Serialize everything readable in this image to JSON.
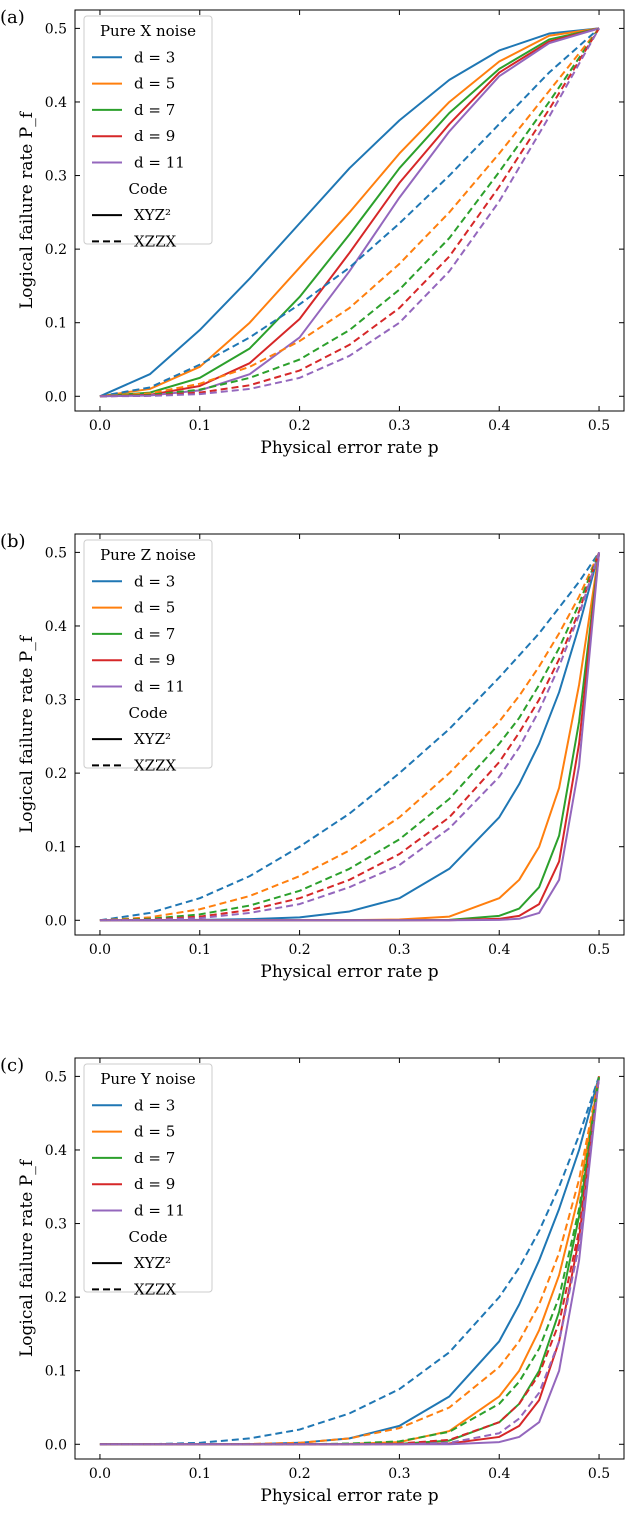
{
  "chart_data": [
    {
      "type": "line",
      "panel_label": "(a)",
      "legend_title": "Pure X noise",
      "legend_code_title": "Code",
      "xlabel": "Physical error rate p",
      "ylabel": "Logical failure rate P_f",
      "xlim": [
        -0.025,
        0.525
      ],
      "ylim": [
        -0.02,
        0.525
      ],
      "xticks": [
        0.0,
        0.1,
        0.2,
        0.3,
        0.4,
        0.5
      ],
      "xtick_labels": [
        "0.0",
        "0.1",
        "0.2",
        "0.3",
        "0.4",
        "0.5"
      ],
      "yticks": [
        0.0,
        0.1,
        0.2,
        0.3,
        0.4,
        0.5
      ],
      "ytick_labels": [
        "0.0",
        "0.1",
        "0.2",
        "0.3",
        "0.4",
        "0.5"
      ],
      "legend_position": "upper left",
      "x": [
        0,
        0.05,
        0.1,
        0.15,
        0.2,
        0.25,
        0.3,
        0.35,
        0.4,
        0.45,
        0.5
      ],
      "distances": [
        {
          "label": "d = 3",
          "color": "#1f77b4"
        },
        {
          "label": "d = 5",
          "color": "#ff7f0e"
        },
        {
          "label": "d = 7",
          "color": "#2ca02c"
        },
        {
          "label": "d = 9",
          "color": "#d62728"
        },
        {
          "label": "d = 11",
          "color": "#9467bd"
        }
      ],
      "codes": [
        {
          "label": "XYZ²",
          "style": "solid"
        },
        {
          "label": "XZZX",
          "style": "dashed"
        }
      ],
      "series": [
        {
          "distance": "d = 3",
          "code": "XYZ²",
          "values": [
            0,
            0.03,
            0.09,
            0.16,
            0.235,
            0.31,
            0.375,
            0.43,
            0.47,
            0.493,
            0.5
          ]
        },
        {
          "distance": "d = 5",
          "code": "XYZ²",
          "values": [
            0,
            0.01,
            0.04,
            0.1,
            0.175,
            0.25,
            0.33,
            0.4,
            0.455,
            0.49,
            0.5
          ]
        },
        {
          "distance": "d = 7",
          "code": "XYZ²",
          "values": [
            0,
            0.005,
            0.025,
            0.065,
            0.135,
            0.22,
            0.31,
            0.385,
            0.445,
            0.485,
            0.5
          ]
        },
        {
          "distance": "d = 9",
          "code": "XYZ²",
          "values": [
            0,
            0.002,
            0.014,
            0.045,
            0.105,
            0.195,
            0.29,
            0.37,
            0.44,
            0.482,
            0.5
          ]
        },
        {
          "distance": "d = 11",
          "code": "XYZ²",
          "values": [
            0,
            0.001,
            0.008,
            0.03,
            0.08,
            0.17,
            0.27,
            0.36,
            0.435,
            0.48,
            0.5
          ]
        },
        {
          "distance": "d = 3",
          "code": "XZZX",
          "values": [
            0,
            0.012,
            0.043,
            0.08,
            0.125,
            0.175,
            0.235,
            0.3,
            0.37,
            0.44,
            0.5
          ]
        },
        {
          "distance": "d = 5",
          "code": "XZZX",
          "values": [
            0,
            0.004,
            0.017,
            0.04,
            0.075,
            0.12,
            0.18,
            0.25,
            0.33,
            0.415,
            0.5
          ]
        },
        {
          "distance": "d = 7",
          "code": "XZZX",
          "values": [
            0,
            0.002,
            0.009,
            0.025,
            0.05,
            0.09,
            0.145,
            0.215,
            0.305,
            0.4,
            0.5
          ]
        },
        {
          "distance": "d = 9",
          "code": "XZZX",
          "values": [
            0,
            0.001,
            0.005,
            0.015,
            0.035,
            0.07,
            0.12,
            0.19,
            0.285,
            0.39,
            0.5
          ]
        },
        {
          "distance": "d = 11",
          "code": "XZZX",
          "values": [
            0,
            0.0005,
            0.003,
            0.01,
            0.025,
            0.055,
            0.1,
            0.17,
            0.265,
            0.38,
            0.5
          ]
        }
      ]
    },
    {
      "type": "line",
      "panel_label": "(b)",
      "legend_title": "Pure Z noise",
      "legend_code_title": "Code",
      "xlabel": "Physical error rate p",
      "ylabel": "Logical failure rate P_f",
      "xlim": [
        -0.025,
        0.525
      ],
      "ylim": [
        -0.02,
        0.525
      ],
      "xticks": [
        0.0,
        0.1,
        0.2,
        0.3,
        0.4,
        0.5
      ],
      "xtick_labels": [
        "0.0",
        "0.1",
        "0.2",
        "0.3",
        "0.4",
        "0.5"
      ],
      "yticks": [
        0.0,
        0.1,
        0.2,
        0.3,
        0.4,
        0.5
      ],
      "ytick_labels": [
        "0.0",
        "0.1",
        "0.2",
        "0.3",
        "0.4",
        "0.5"
      ],
      "legend_position": "upper left",
      "x": [
        0,
        0.05,
        0.1,
        0.15,
        0.2,
        0.25,
        0.3,
        0.35,
        0.4,
        0.42,
        0.44,
        0.46,
        0.48,
        0.5
      ],
      "distances": [
        {
          "label": "d = 3",
          "color": "#1f77b4"
        },
        {
          "label": "d = 5",
          "color": "#ff7f0e"
        },
        {
          "label": "d = 7",
          "color": "#2ca02c"
        },
        {
          "label": "d = 9",
          "color": "#d62728"
        },
        {
          "label": "d = 11",
          "color": "#9467bd"
        }
      ],
      "codes": [
        {
          "label": "XYZ²",
          "style": "solid"
        },
        {
          "label": "XZZX",
          "style": "dashed"
        }
      ],
      "series": [
        {
          "distance": "d = 3",
          "code": "XYZ²",
          "values": [
            0,
            0,
            0.0005,
            0.0015,
            0.004,
            0.012,
            0.03,
            0.07,
            0.14,
            0.185,
            0.24,
            0.31,
            0.4,
            0.5
          ]
        },
        {
          "distance": "d = 5",
          "code": "XYZ²",
          "values": [
            0,
            0,
            0,
            0,
            0,
            0.0002,
            0.001,
            0.005,
            0.03,
            0.055,
            0.1,
            0.18,
            0.32,
            0.5
          ]
        },
        {
          "distance": "d = 7",
          "code": "XYZ²",
          "values": [
            0,
            0,
            0,
            0,
            0,
            0,
            0,
            0.0005,
            0.006,
            0.016,
            0.045,
            0.115,
            0.27,
            0.5
          ]
        },
        {
          "distance": "d = 9",
          "code": "XYZ²",
          "values": [
            0,
            0,
            0,
            0,
            0,
            0,
            0,
            0,
            0.002,
            0.006,
            0.022,
            0.08,
            0.24,
            0.5
          ]
        },
        {
          "distance": "d = 11",
          "code": "XYZ²",
          "values": [
            0,
            0,
            0,
            0,
            0,
            0,
            0,
            0,
            0.0005,
            0.002,
            0.01,
            0.055,
            0.21,
            0.5
          ]
        },
        {
          "distance": "d = 3",
          "code": "XZZX",
          "values": [
            0,
            0.01,
            0.03,
            0.06,
            0.1,
            0.145,
            0.2,
            0.26,
            0.33,
            0.36,
            0.39,
            0.425,
            0.46,
            0.5
          ]
        },
        {
          "distance": "d = 5",
          "code": "XZZX",
          "values": [
            0,
            0.004,
            0.015,
            0.033,
            0.06,
            0.095,
            0.14,
            0.2,
            0.27,
            0.305,
            0.345,
            0.39,
            0.44,
            0.5
          ]
        },
        {
          "distance": "d = 7",
          "code": "XZZX",
          "values": [
            0,
            0.002,
            0.008,
            0.02,
            0.04,
            0.07,
            0.11,
            0.165,
            0.24,
            0.275,
            0.32,
            0.37,
            0.43,
            0.5
          ]
        },
        {
          "distance": "d = 9",
          "code": "XZZX",
          "values": [
            0,
            0.001,
            0.005,
            0.014,
            0.03,
            0.055,
            0.09,
            0.14,
            0.215,
            0.255,
            0.3,
            0.355,
            0.42,
            0.5
          ]
        },
        {
          "distance": "d = 11",
          "code": "XZZX",
          "values": [
            0,
            0.0005,
            0.003,
            0.01,
            0.022,
            0.045,
            0.075,
            0.125,
            0.195,
            0.235,
            0.285,
            0.345,
            0.415,
            0.5
          ]
        }
      ]
    },
    {
      "type": "line",
      "panel_label": "(c)",
      "legend_title": "Pure Y noise",
      "legend_code_title": "Code",
      "xlabel": "Physical error rate p",
      "ylabel": "Logical failure rate P_f",
      "xlim": [
        -0.025,
        0.525
      ],
      "ylim": [
        -0.02,
        0.525
      ],
      "xticks": [
        0.0,
        0.1,
        0.2,
        0.3,
        0.4,
        0.5
      ],
      "xtick_labels": [
        "0.0",
        "0.1",
        "0.2",
        "0.3",
        "0.4",
        "0.5"
      ],
      "yticks": [
        0.0,
        0.1,
        0.2,
        0.3,
        0.4,
        0.5
      ],
      "ytick_labels": [
        "0.0",
        "0.1",
        "0.2",
        "0.3",
        "0.4",
        "0.5"
      ],
      "legend_position": "upper left",
      "x": [
        0,
        0.05,
        0.1,
        0.15,
        0.2,
        0.25,
        0.3,
        0.35,
        0.4,
        0.42,
        0.44,
        0.46,
        0.48,
        0.5
      ],
      "distances": [
        {
          "label": "d = 3",
          "color": "#1f77b4"
        },
        {
          "label": "d = 5",
          "color": "#ff7f0e"
        },
        {
          "label": "d = 7",
          "color": "#2ca02c"
        },
        {
          "label": "d = 9",
          "color": "#d62728"
        },
        {
          "label": "d = 11",
          "color": "#9467bd"
        }
      ],
      "codes": [
        {
          "label": "XYZ²",
          "style": "solid"
        },
        {
          "label": "XZZX",
          "style": "dashed"
        }
      ],
      "series": [
        {
          "distance": "d = 3",
          "code": "XYZ²",
          "values": [
            0,
            0,
            0,
            0,
            0.002,
            0.008,
            0.025,
            0.065,
            0.14,
            0.19,
            0.25,
            0.32,
            0.4,
            0.5
          ]
        },
        {
          "distance": "d = 5",
          "code": "XYZ²",
          "values": [
            0,
            0,
            0,
            0,
            0,
            0.0005,
            0.003,
            0.018,
            0.065,
            0.1,
            0.155,
            0.23,
            0.34,
            0.5
          ]
        },
        {
          "distance": "d = 7",
          "code": "XYZ²",
          "values": [
            0,
            0,
            0,
            0,
            0,
            0,
            0.0005,
            0.005,
            0.03,
            0.055,
            0.1,
            0.18,
            0.31,
            0.5
          ]
        },
        {
          "distance": "d = 9",
          "code": "XYZ²",
          "values": [
            0,
            0,
            0,
            0,
            0,
            0,
            0,
            0.001,
            0.01,
            0.025,
            0.06,
            0.14,
            0.28,
            0.5
          ]
        },
        {
          "distance": "d = 11",
          "code": "XYZ²",
          "values": [
            0,
            0,
            0,
            0,
            0,
            0,
            0,
            0,
            0.003,
            0.01,
            0.03,
            0.1,
            0.25,
            0.5
          ]
        },
        {
          "distance": "d = 3",
          "code": "XZZX",
          "values": [
            0,
            0,
            0.002,
            0.008,
            0.02,
            0.042,
            0.075,
            0.125,
            0.2,
            0.24,
            0.29,
            0.35,
            0.42,
            0.5
          ]
        },
        {
          "distance": "d = 5",
          "code": "XZZX",
          "values": [
            0,
            0,
            0,
            0.0005,
            0.002,
            0.008,
            0.022,
            0.05,
            0.105,
            0.14,
            0.19,
            0.26,
            0.36,
            0.5
          ]
        },
        {
          "distance": "d = 7",
          "code": "XZZX",
          "values": [
            0,
            0,
            0,
            0,
            0,
            0.001,
            0.004,
            0.017,
            0.055,
            0.085,
            0.13,
            0.2,
            0.32,
            0.5
          ]
        },
        {
          "distance": "d = 9",
          "code": "XZZX",
          "values": [
            0,
            0,
            0,
            0,
            0,
            0,
            0.001,
            0.006,
            0.03,
            0.055,
            0.095,
            0.165,
            0.29,
            0.5
          ]
        },
        {
          "distance": "d = 11",
          "code": "XZZX",
          "values": [
            0,
            0,
            0,
            0,
            0,
            0,
            0,
            0.002,
            0.015,
            0.035,
            0.07,
            0.14,
            0.27,
            0.5
          ]
        }
      ]
    }
  ]
}
